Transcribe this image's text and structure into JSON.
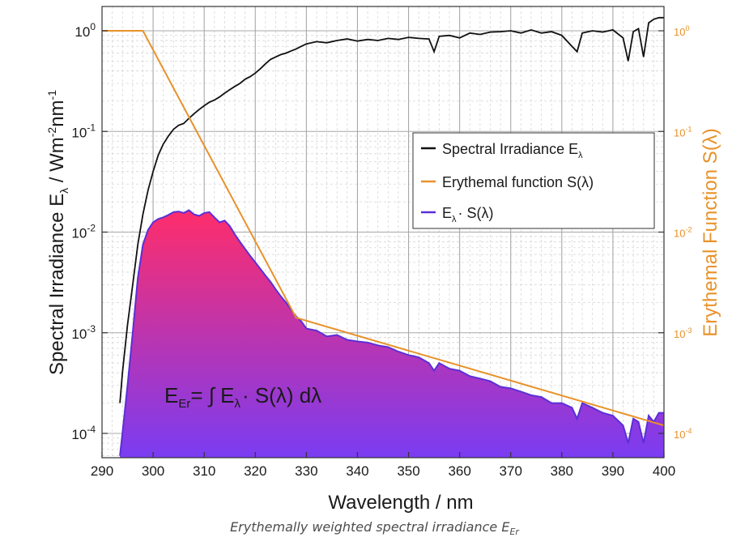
{
  "chart_data": {
    "type": "area",
    "x_axis": {
      "label": "Wavelength / nm",
      "range": [
        290,
        400
      ],
      "ticks": [
        "290",
        "300",
        "310",
        "320",
        "330",
        "340",
        "350",
        "360",
        "370",
        "380",
        "390",
        "400"
      ]
    },
    "y_left": {
      "label_prefix": "Spectral Irradiance E",
      "label_sub": "λ",
      "label_mid": " / Wm",
      "label_sup1": "-2",
      "label_mid2": "nm",
      "label_sup2": "-1",
      "scale": "log",
      "range": [
        6e-05,
        1.5
      ],
      "tick_labels": [
        {
          "value": 1,
          "mant": "10",
          "exp": "0"
        },
        {
          "value": 0.1,
          "mant": "10",
          "exp": "-1"
        },
        {
          "value": 0.01,
          "mant": "10",
          "exp": "-2"
        },
        {
          "value": 0.001,
          "mant": "10",
          "exp": "-3"
        },
        {
          "value": 0.0001,
          "mant": "10",
          "exp": "-4"
        }
      ]
    },
    "y_right": {
      "label": "Erythemal Function S(λ)",
      "scale": "log",
      "color": "#e8922a",
      "tick_labels": [
        {
          "value": 1,
          "mant": "10",
          "exp": "0"
        },
        {
          "value": 0.1,
          "mant": "10",
          "exp": "-1"
        },
        {
          "value": 0.01,
          "mant": "10",
          "exp": "-2"
        },
        {
          "value": 0.001,
          "mant": "10",
          "exp": "-3"
        },
        {
          "value": 0.0001,
          "mant": "10",
          "exp": "-4"
        }
      ]
    },
    "grid": true,
    "legend_position": "upper-right",
    "series": [
      {
        "name_main": "Spectral Irradiance E",
        "name_sub": "λ",
        "color": "#111111",
        "style": "line",
        "x": [
          293.5,
          294,
          295,
          296,
          297,
          298,
          299,
          300,
          301,
          302,
          303,
          304,
          305,
          306,
          307,
          308,
          309,
          310,
          311,
          312,
          313,
          314,
          315,
          316,
          317,
          318,
          319,
          320,
          321,
          322,
          323,
          324,
          325,
          326,
          327,
          328,
          329,
          330,
          332,
          334,
          336,
          338,
          340,
          342,
          344,
          346,
          348,
          350,
          352,
          354,
          355,
          356,
          358,
          360,
          362,
          364,
          366,
          368,
          370,
          372,
          374,
          376,
          378,
          380,
          382,
          383,
          384,
          386,
          388,
          390,
          392,
          393,
          394,
          395,
          396,
          397,
          398,
          399,
          400
        ],
        "y": [
          0.0002,
          0.0004,
          0.0012,
          0.003,
          0.0075,
          0.015,
          0.026,
          0.04,
          0.058,
          0.075,
          0.09,
          0.105,
          0.115,
          0.12,
          0.135,
          0.15,
          0.165,
          0.18,
          0.195,
          0.205,
          0.22,
          0.24,
          0.26,
          0.28,
          0.3,
          0.33,
          0.35,
          0.38,
          0.42,
          0.47,
          0.52,
          0.55,
          0.58,
          0.6,
          0.63,
          0.66,
          0.7,
          0.74,
          0.78,
          0.76,
          0.8,
          0.83,
          0.79,
          0.82,
          0.8,
          0.84,
          0.82,
          0.86,
          0.84,
          0.83,
          0.62,
          0.88,
          0.9,
          0.85,
          0.95,
          0.92,
          0.97,
          0.98,
          1.0,
          0.95,
          1.02,
          0.95,
          0.98,
          0.9,
          0.7,
          0.62,
          0.95,
          1.0,
          0.97,
          1.02,
          0.85,
          0.5,
          0.98,
          1.05,
          0.55,
          1.2,
          1.3,
          1.35,
          1.35
        ]
      },
      {
        "name": "Erythemal function S(λ)",
        "color": "#e8922a",
        "style": "line",
        "x": [
          290,
          298,
          328,
          400
        ],
        "y": [
          1.0,
          1.0,
          0.00141,
          0.00012
        ]
      },
      {
        "name_main": "E",
        "name_sub": "λ",
        "name_rest": "· S(λ)",
        "color": "#5a2fd8",
        "style": "area",
        "fill_top": "#ff2d6a",
        "fill_bottom": "#7a3cf2",
        "x": [
          293.5,
          294,
          295,
          296,
          297,
          298,
          299,
          300,
          301,
          302,
          303,
          304,
          305,
          306,
          307,
          308,
          309,
          310,
          311,
          312,
          313,
          314,
          315,
          316,
          317,
          318,
          319,
          320,
          321,
          322,
          323,
          324,
          325,
          326,
          327,
          328,
          329,
          330,
          332,
          334,
          336,
          338,
          340,
          342,
          344,
          346,
          348,
          350,
          352,
          354,
          355,
          356,
          358,
          360,
          362,
          364,
          366,
          368,
          370,
          372,
          374,
          376,
          378,
          380,
          382,
          383,
          384,
          386,
          388,
          390,
          392,
          393,
          394,
          395,
          396,
          397,
          398,
          399,
          400
        ],
        "y": [
          6e-05,
          0.0001,
          0.0003,
          0.001,
          0.0035,
          0.0075,
          0.0105,
          0.0125,
          0.0135,
          0.014,
          0.0148,
          0.0158,
          0.016,
          0.0155,
          0.0165,
          0.015,
          0.0145,
          0.0155,
          0.0158,
          0.014,
          0.0125,
          0.013,
          0.0115,
          0.0095,
          0.008,
          0.0068,
          0.0058,
          0.005,
          0.0043,
          0.0037,
          0.0032,
          0.0027,
          0.0023,
          0.002,
          0.0017,
          0.00145,
          0.0013,
          0.0011,
          0.00105,
          0.00092,
          0.00095,
          0.00085,
          0.00082,
          0.0008,
          0.00075,
          0.00072,
          0.00065,
          0.0006,
          0.00057,
          0.0005,
          0.00042,
          0.0005,
          0.00044,
          0.00042,
          0.00037,
          0.00035,
          0.00033,
          0.00029,
          0.00028,
          0.00026,
          0.00024,
          0.00023,
          0.0002,
          0.0002,
          0.00018,
          0.00014,
          0.0002,
          0.00018,
          0.00016,
          0.00015,
          0.00012,
          8e-05,
          0.00014,
          0.00013,
          8e-05,
          0.00015,
          0.00013,
          0.00016,
          0.00016
        ]
      }
    ],
    "annotation": {
      "main": "E",
      "sub": "Er",
      "rest": "= ∫ E",
      "sub2": "λ",
      "rest2": "· S(λ) dλ"
    }
  },
  "caption": {
    "main": "Erythemally weighted spectral irradiance E",
    "sub": "Er"
  }
}
